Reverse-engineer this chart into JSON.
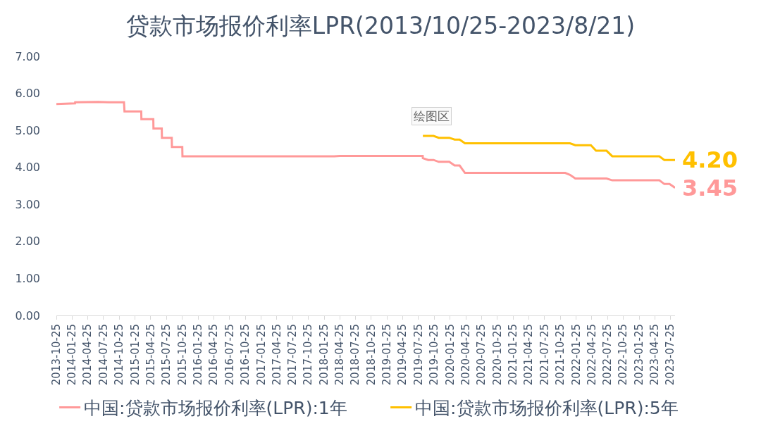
{
  "chart_data": {
    "type": "line",
    "title": "贷款市场报价利率LPR(2013/10/25-2023/8/21)",
    "xlim": [
      "2013-10-25",
      "2023-08-21"
    ],
    "xticks": [
      "2013-10-25",
      "2014-01-25",
      "2014-04-25",
      "2014-07-25",
      "2014-10-25",
      "2015-01-25",
      "2015-04-25",
      "2015-07-25",
      "2015-10-25",
      "2016-01-25",
      "2016-04-25",
      "2016-07-25",
      "2016-10-25",
      "2017-01-25",
      "2017-04-25",
      "2017-07-25",
      "2017-10-25",
      "2018-01-25",
      "2018-04-25",
      "2018-07-25",
      "2018-10-25",
      "2019-01-25",
      "2019-04-25",
      "2019-07-25",
      "2019-10-25",
      "2020-01-25",
      "2020-04-25",
      "2020-07-25",
      "2020-10-25",
      "2021-01-25",
      "2021-04-25",
      "2021-07-25",
      "2021-10-25",
      "2022-01-25",
      "2022-04-25",
      "2022-07-25",
      "2022-10-25",
      "2023-01-25",
      "2023-04-25",
      "2023-07-25"
    ],
    "ylim": [
      0,
      7
    ],
    "yticks": [
      {
        "value": 0,
        "label": "0.00"
      },
      {
        "value": 1,
        "label": "1.00"
      },
      {
        "value": 2,
        "label": "2.00"
      },
      {
        "value": 3,
        "label": "3.00"
      },
      {
        "value": 4,
        "label": "4.00"
      },
      {
        "value": 5,
        "label": "5.00"
      },
      {
        "value": 6,
        "label": "6.00"
      },
      {
        "value": 7,
        "label": "7.00"
      }
    ],
    "legend": "bottom",
    "line_style": "solid",
    "series": [
      {
        "name": "中国:贷款市场报价利率(LPR):1年",
        "color": "#ff9999",
        "x": [
          "2013-10-25",
          "2014-02-10",
          "2014-02-11",
          "2014-06-25",
          "2014-08-25",
          "2014-11-21",
          "2014-11-24",
          "2015-03-01",
          "2015-03-02",
          "2015-05-10",
          "2015-05-11",
          "2015-06-28",
          "2015-06-29",
          "2015-08-25",
          "2015-08-26",
          "2015-10-25",
          "2015-10-26",
          "2018-03-25",
          "2018-04-25",
          "2019-08-19",
          "2019-08-20",
          "2019-09-20",
          "2019-10-21",
          "2019-11-20",
          "2020-01-20",
          "2020-02-20",
          "2020-03-20",
          "2020-04-20",
          "2021-11-22",
          "2021-12-20",
          "2022-01-20",
          "2022-07-20",
          "2022-08-22",
          "2023-05-22",
          "2023-06-20",
          "2023-07-20",
          "2023-08-21"
        ],
        "values": [
          5.71,
          5.73,
          5.76,
          5.77,
          5.76,
          5.76,
          5.51,
          5.51,
          5.3,
          5.3,
          5.05,
          5.05,
          4.8,
          4.8,
          4.55,
          4.55,
          4.3,
          4.3,
          4.31,
          4.31,
          4.25,
          4.2,
          4.2,
          4.15,
          4.15,
          4.05,
          4.05,
          3.85,
          3.85,
          3.8,
          3.7,
          3.7,
          3.65,
          3.65,
          3.55,
          3.55,
          3.45
        ]
      },
      {
        "name": "中国:贷款市场报价利率(LPR):5年",
        "color": "#ffc000",
        "x": [
          "2019-08-20",
          "2019-10-21",
          "2019-11-20",
          "2020-01-20",
          "2020-02-20",
          "2020-03-20",
          "2020-04-20",
          "2021-12-20",
          "2022-01-20",
          "2022-04-20",
          "2022-05-20",
          "2022-07-20",
          "2022-08-22",
          "2023-05-22",
          "2023-06-20",
          "2023-08-21"
        ],
        "values": [
          4.85,
          4.85,
          4.8,
          4.8,
          4.75,
          4.75,
          4.65,
          4.65,
          4.6,
          4.6,
          4.45,
          4.45,
          4.3,
          4.3,
          4.2,
          4.2
        ]
      }
    ],
    "annotations": [
      {
        "text": "4.20",
        "x": "2023-08-21",
        "y": 4.2
      },
      {
        "text": "3.45",
        "x": "2023-08-21",
        "y": 3.45
      },
      "绘图区"
    ]
  }
}
